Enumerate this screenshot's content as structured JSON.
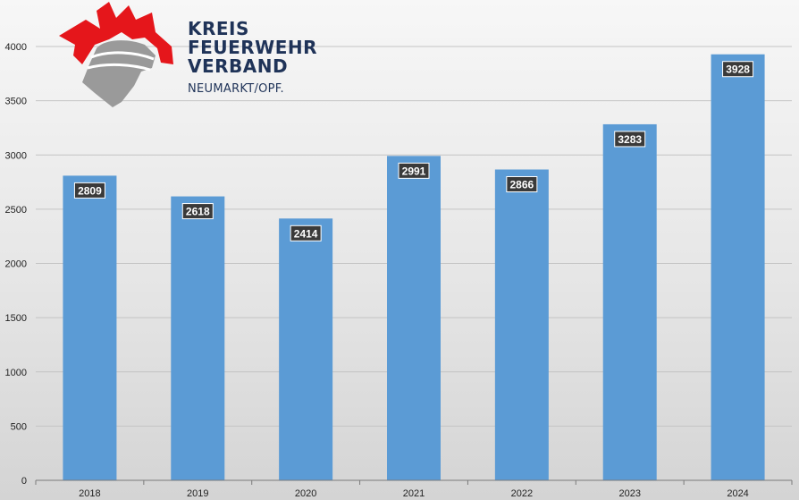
{
  "logo": {
    "line1": "KREIS",
    "line2": "FEUERWEHR",
    "line3": "VERBAND",
    "subline": "NEUMARKT/OPF.",
    "red": "#e5161b",
    "gray": "#9a9a9a",
    "text_color": "#1f3358"
  },
  "chart_data": {
    "type": "bar",
    "categories": [
      "2018",
      "2019",
      "2020",
      "2021",
      "2022",
      "2023",
      "2024"
    ],
    "values": [
      2809,
      2618,
      2414,
      2991,
      2866,
      3283,
      3928
    ],
    "title": "",
    "xlabel": "",
    "ylabel": "",
    "ylim": [
      0,
      4000
    ],
    "yticks": [
      "0",
      "500",
      "1000",
      "1500",
      "2000",
      "2500",
      "3000",
      "3500",
      "4000"
    ],
    "grid": true,
    "legend": "none",
    "bar_color": "#5b9bd5",
    "label_bg": "#3a3a3a",
    "label_color": "#ffffff"
  }
}
